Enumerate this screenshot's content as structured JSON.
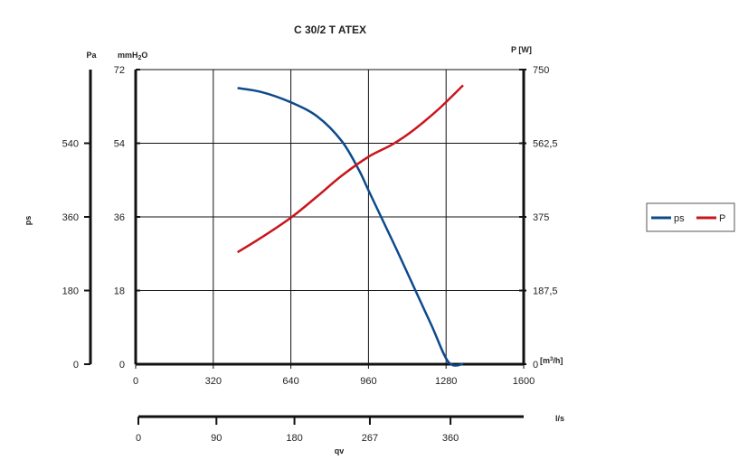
{
  "chart_data": {
    "type": "line",
    "title": "C 30/2 T ATEX",
    "x_axis": {
      "unit": "[m³/h]",
      "range": [
        0,
        1600
      ],
      "ticks": [
        0,
        320,
        640,
        960,
        1280,
        1600
      ]
    },
    "x2_axis": {
      "label": "qv",
      "unit": "l/s",
      "range": [
        0,
        444.4
      ],
      "ticks": [
        0,
        90,
        180,
        267,
        360
      ]
    },
    "y_left": {
      "unit": "mmH2O",
      "range": [
        0,
        72
      ],
      "ticks": [
        0,
        18,
        36,
        54,
        72
      ]
    },
    "y_pa": {
      "label": "ps",
      "unit": "Pa",
      "range": [
        0,
        720
      ],
      "ticks": [
        0,
        180,
        360,
        540
      ]
    },
    "y_right": {
      "unit": "P [W]",
      "range": [
        0,
        750
      ],
      "ticks": [
        "0",
        "187,5",
        "375",
        "562,5",
        "750"
      ],
      "tick_values": [
        0,
        187.5,
        375,
        562.5,
        750
      ]
    },
    "grid": true,
    "legend": {
      "placement": "right",
      "entries": [
        "ps",
        "P"
      ]
    },
    "series": [
      {
        "name": "ps",
        "axis": "y_left",
        "color": "#0d4a8c",
        "x": [
          420,
          520,
          640,
          750,
          850,
          920,
          960,
          1020,
          1080,
          1150,
          1220,
          1290,
          1350
        ],
        "y": [
          67.5,
          66.5,
          64,
          60.5,
          54.5,
          47.5,
          42.5,
          35,
          27.5,
          18.5,
          9.5,
          0.5,
          0
        ]
      },
      {
        "name": "P",
        "axis": "y_right",
        "color": "#c8161d",
        "x": [
          420,
          520,
          640,
          750,
          850,
          960,
          1060,
          1150,
          1250,
          1350
        ],
        "y": [
          285,
          323,
          373,
          428,
          480,
          528,
          560,
          598,
          650,
          710
        ]
      }
    ]
  }
}
